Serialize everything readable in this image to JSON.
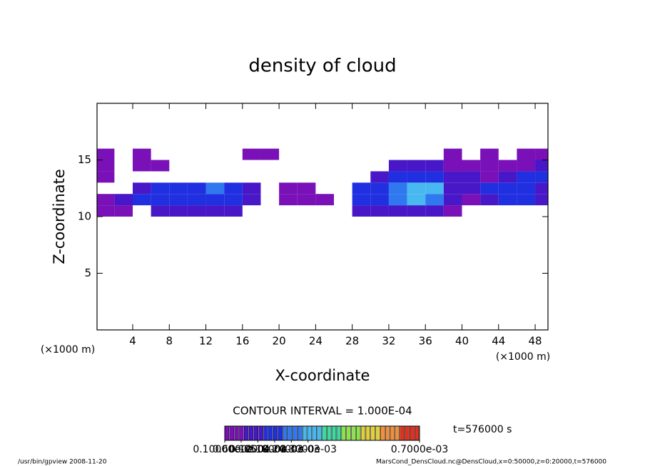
{
  "chart_data": {
    "type": "heatmap",
    "title": "density of cloud",
    "xlabel": "X-coordinate",
    "ylabel": "Z-coordinate",
    "xunit_left": "(×1000 m)",
    "xunit_right": "(×1000 m)",
    "contour_text": "CONTOUR INTERVAL = 1.000E-04",
    "time_text": "t=576000 s",
    "footer_left": "/usr/bin/gpview  2008-11-20",
    "footer_right": "MarsCond_DensCloud.nc@DensCloud,x=0:50000,z=0:20000,t=576000",
    "xlim": [
      0.1,
      49.4
    ],
    "ylim": [
      0,
      20
    ],
    "xticks": [
      4,
      8,
      12,
      16,
      20,
      24,
      28,
      32,
      36,
      40,
      44,
      48
    ],
    "yticks": [
      5,
      10,
      15
    ],
    "x": [
      1,
      3,
      5,
      7,
      9,
      11,
      13,
      15,
      17,
      19,
      21,
      23,
      25,
      27,
      29,
      31,
      33,
      35,
      37,
      39,
      41,
      43,
      45,
      47,
      49
    ],
    "z": [
      10.5,
      11.5,
      12.5,
      13.5,
      14.5,
      15.5
    ],
    "values": [
      [
        5e-05,
        5e-05,
        null,
        0.0001,
        0.0001,
        0.0001,
        0.0001,
        0.0001,
        null,
        null,
        null,
        null,
        null,
        null,
        0.0001,
        0.0001,
        0.0001,
        0.0001,
        0.0001,
        5e-05,
        null,
        null,
        null,
        null,
        null
      ],
      [
        5e-05,
        0.0001,
        0.00015,
        0.0002,
        0.0002,
        0.00015,
        0.0002,
        0.0002,
        0.0001,
        null,
        5e-05,
        5e-05,
        5e-05,
        null,
        0.00015,
        0.0002,
        0.00025,
        0.0003,
        0.00025,
        0.0001,
        5e-05,
        0.0001,
        0.00015,
        0.00015,
        0.0001
      ],
      [
        null,
        null,
        0.0001,
        0.00015,
        0.0002,
        0.0002,
        0.00025,
        0.0002,
        0.0001,
        null,
        5e-05,
        5e-05,
        null,
        null,
        0.00015,
        0.0002,
        0.00025,
        0.0003,
        0.0003,
        0.0001,
        0.0001,
        0.00015,
        0.0002,
        0.0002,
        0.0001
      ],
      [
        5e-05,
        null,
        null,
        null,
        null,
        null,
        null,
        null,
        null,
        null,
        null,
        null,
        null,
        null,
        null,
        0.0001,
        0.00015,
        0.0002,
        0.0002,
        0.0001,
        0.0001,
        5e-05,
        0.0001,
        0.00015,
        0.00015
      ],
      [
        5e-05,
        null,
        5e-05,
        5e-05,
        null,
        null,
        null,
        null,
        null,
        null,
        null,
        null,
        null,
        null,
        null,
        null,
        0.0001,
        0.0001,
        0.0001,
        5e-05,
        5e-05,
        5e-05,
        5e-05,
        5e-05,
        0.0001
      ],
      [
        5e-05,
        null,
        5e-05,
        null,
        null,
        null,
        null,
        null,
        5e-05,
        5e-05,
        null,
        null,
        null,
        null,
        null,
        null,
        null,
        null,
        null,
        5e-05,
        null,
        5e-05,
        null,
        5e-05,
        5e-05
      ]
    ],
    "zlim": [
      1e-06,
      0.0007
    ],
    "colors": [
      "#7a10b8",
      "#4818c8",
      "#2030e0",
      "#2f78f0",
      "#48b8f0",
      "#40d8a0",
      "#90e050",
      "#e0d040",
      "#f09040",
      "#e03020"
    ],
    "colorbar_ticks": [
      {
        "value": 1e-06,
        "label": "0.10000e-05"
      },
      {
        "value": 6e-05,
        "label": "0.6000e-04"
      },
      {
        "value": 0.00012,
        "label": "0.1200e-03"
      },
      {
        "value": 0.00018,
        "label": "0.1800e-03"
      },
      {
        "value": 0.00024,
        "label": "0.2400e-03"
      },
      {
        "value": 0.0003,
        "label": "0.3000e-03"
      },
      {
        "value": 0.0007,
        "label": "0.7000e-03"
      }
    ]
  }
}
